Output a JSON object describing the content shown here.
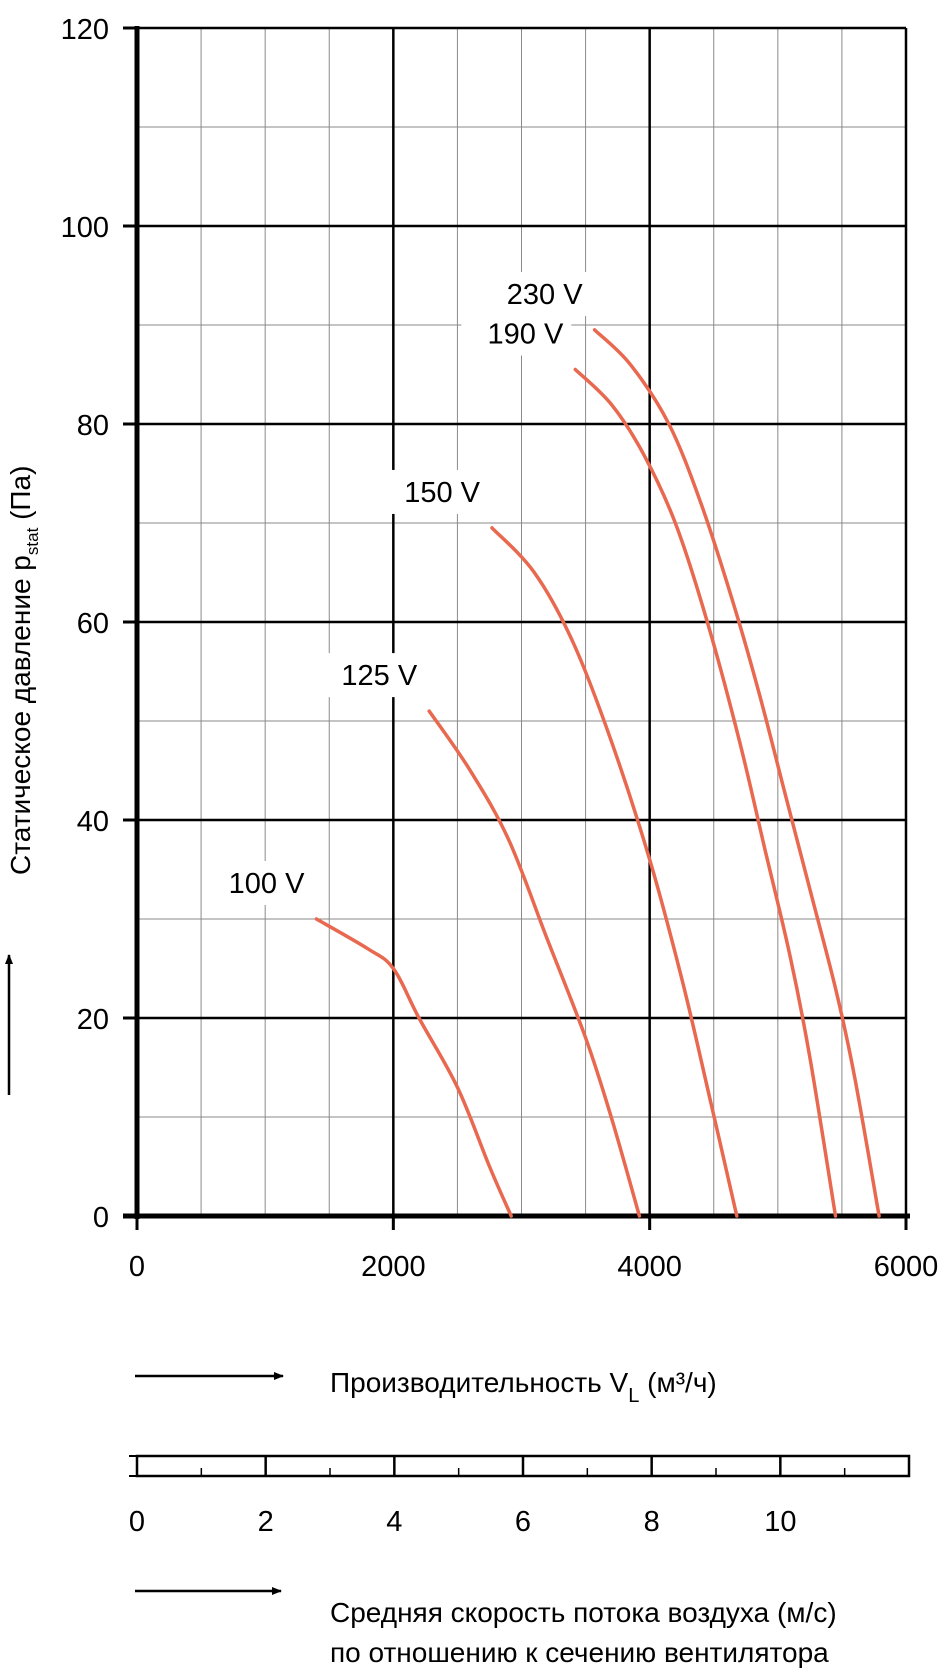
{
  "chart_data": {
    "type": "line",
    "title": "",
    "xlabel": "Производительность V",
    "xlabel_sub": "L",
    "xlabel_unit": " (м³/ч)",
    "ylabel": "Статическое давление p",
    "ylabel_sub": "stat",
    "ylabel_unit": " (Па)",
    "xlim": [
      0,
      6000
    ],
    "ylim": [
      0,
      120
    ],
    "x_ticks": [
      0,
      2000,
      4000,
      6000
    ],
    "y_ticks": [
      0,
      20,
      40,
      60,
      80,
      100,
      120
    ],
    "x_tick_labels": [
      "0",
      "2000",
      "4000",
      "6000"
    ],
    "y_tick_labels": [
      "0",
      "20",
      "40",
      "60",
      "80",
      "100",
      "120"
    ],
    "grid": true,
    "series_color": "#e8694f",
    "series": [
      {
        "name": "100 V",
        "x": [
          1400,
          1800,
          2000,
          2200,
          2500,
          2750,
          2920
        ],
        "y": [
          30,
          27,
          25,
          20,
          13,
          5,
          0
        ]
      },
      {
        "name": "125 V",
        "x": [
          2280,
          2600,
          2900,
          3200,
          3500,
          3700,
          3920
        ],
        "y": [
          51,
          45,
          38,
          28,
          18,
          10,
          0
        ]
      },
      {
        "name": "150 V",
        "x": [
          2770,
          3100,
          3400,
          3700,
          4000,
          4250,
          4450,
          4680
        ],
        "y": [
          69.5,
          65,
          58,
          48,
          36,
          24,
          13,
          0
        ]
      },
      {
        "name": "190 V",
        "x": [
          3420,
          3700,
          3950,
          4200,
          4450,
          4700,
          4900,
          5100,
          5250,
          5450
        ],
        "y": [
          85.5,
          82,
          77,
          70,
          60,
          48,
          37,
          26,
          16,
          0
        ]
      },
      {
        "name": "230 V",
        "x": [
          3570,
          3850,
          4150,
          4400,
          4650,
          4850,
          5050,
          5250,
          5450,
          5600,
          5790
        ],
        "y": [
          89.5,
          86,
          80,
          72,
          62,
          53,
          43,
          33,
          23,
          14,
          0
        ]
      }
    ],
    "secondary_axis": {
      "label_line1": "Средняя скорость потока воздуха (м/с)",
      "label_line2": "по отношению к сечению вентилятора",
      "range": [
        0,
        12
      ],
      "ticks": [
        0,
        2,
        4,
        6,
        8,
        10
      ],
      "tick_labels": [
        "0",
        "2",
        "4",
        "6",
        "8",
        "10"
      ]
    }
  }
}
